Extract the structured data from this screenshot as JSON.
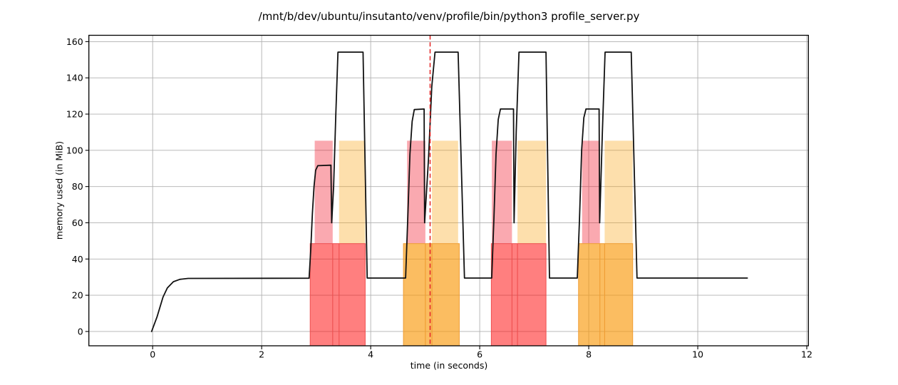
{
  "figure": {
    "background": "#ffffff"
  },
  "chart_data": {
    "type": "line",
    "title": "/mnt/b/dev/ubuntu/insutanto/venv/profile/bin/python3 profile_server.py",
    "xlabel": "time (in seconds)",
    "ylabel": "memory used (in MiB)",
    "xlim": [
      -1.17,
      12.03
    ],
    "ylim": [
      -7.9,
      163.5
    ],
    "xticks": [
      0,
      2,
      4,
      6,
      8,
      10,
      12
    ],
    "yticks": [
      0,
      20,
      40,
      60,
      80,
      100,
      120,
      140,
      160
    ],
    "grid": true,
    "legend": "none",
    "colors": {
      "line": "#111111",
      "vline": "#e32222",
      "grid": "#b0b0b0",
      "frame": "#000000",
      "pink_column": "rgba(240,10,30,0.35)",
      "orange_column": "rgba(249,164,18,0.35)",
      "red_overlay": "rgba(255,0,0,0.5)",
      "orange_overlay": "rgba(249,154,12,0.65)",
      "red_edge": "#ee4f4f",
      "orange_edge": "#ef9d33"
    },
    "memory_series": {
      "name": "memory-usage-mib",
      "points": [
        [
          -0.02,
          0
        ],
        [
          0.08,
          8
        ],
        [
          0.19,
          19
        ],
        [
          0.27,
          24
        ],
        [
          0.38,
          27.5
        ],
        [
          0.5,
          28.8
        ],
        [
          0.65,
          29.3
        ],
        [
          2.87,
          29.4
        ],
        [
          2.9,
          45
        ],
        [
          2.93,
          65
        ],
        [
          2.96,
          80
        ],
        [
          2.99,
          89
        ],
        [
          3.03,
          91.5
        ],
        [
          3.27,
          91.8
        ],
        [
          3.285,
          60
        ],
        [
          3.32,
          80
        ],
        [
          3.36,
          120
        ],
        [
          3.4,
          154.2
        ],
        [
          3.86,
          154.2
        ],
        [
          3.935,
          29.5
        ],
        [
          4.64,
          29.5
        ],
        [
          4.68,
          62
        ],
        [
          4.72,
          98
        ],
        [
          4.76,
          116
        ],
        [
          4.8,
          122.5
        ],
        [
          4.98,
          122.8
        ],
        [
          4.99,
          60
        ],
        [
          5.06,
          95
        ],
        [
          5.12,
          135
        ],
        [
          5.18,
          154.2
        ],
        [
          5.604,
          154.2
        ],
        [
          5.72,
          29.5
        ],
        [
          6.22,
          29.5
        ],
        [
          6.26,
          62
        ],
        [
          6.3,
          98
        ],
        [
          6.34,
          117
        ],
        [
          6.38,
          122.8
        ],
        [
          6.62,
          122.8
        ],
        [
          6.63,
          60
        ],
        [
          6.67,
          110
        ],
        [
          6.72,
          154.2
        ],
        [
          7.216,
          154.2
        ],
        [
          7.28,
          29.5
        ],
        [
          7.79,
          29.5
        ],
        [
          7.83,
          62
        ],
        [
          7.87,
          100
        ],
        [
          7.91,
          118
        ],
        [
          7.95,
          122.8
        ],
        [
          8.19,
          122.8
        ],
        [
          8.2,
          60
        ],
        [
          8.25,
          110
        ],
        [
          8.3,
          154.2
        ],
        [
          8.78,
          154.2
        ],
        [
          8.885,
          29.5
        ],
        [
          10.91,
          29.5
        ]
      ]
    },
    "vline": {
      "x": 5.09,
      "style": "dashed"
    },
    "bracket_groups": [
      {
        "kind": "red",
        "overlay_span": [
          2.89,
          3.899
        ],
        "pink_column_span": [
          2.973,
          3.303
        ],
        "orange_column_span": [
          3.42,
          3.899
        ],
        "overlay_top": 48.5,
        "column_top": 105.3,
        "seams": [
          3.303,
          3.42
        ]
      },
      {
        "kind": "orange",
        "overlay_span": [
          4.601,
          5.625
        ],
        "pink_column_span": [
          4.667,
          5.003
        ],
        "orange_column_span": [
          5.124,
          5.604
        ],
        "overlay_top": 48.5,
        "column_top": 105.3,
        "seams": [
          5.003,
          5.124
        ]
      },
      {
        "kind": "red",
        "overlay_span": [
          6.213,
          7.216
        ],
        "pink_column_span": [
          6.222,
          6.592
        ],
        "orange_column_span": [
          6.693,
          7.216
        ],
        "overlay_top": 48.5,
        "column_top": 105.3,
        "seams": [
          6.592,
          6.693
        ]
      },
      {
        "kind": "orange",
        "overlay_span": [
          7.813,
          8.806
        ],
        "pink_column_span": [
          7.878,
          8.205
        ],
        "orange_column_span": [
          8.292,
          8.806
        ],
        "overlay_top": 48.5,
        "column_top": 105.3,
        "seams": [
          8.205,
          8.292
        ]
      }
    ]
  }
}
